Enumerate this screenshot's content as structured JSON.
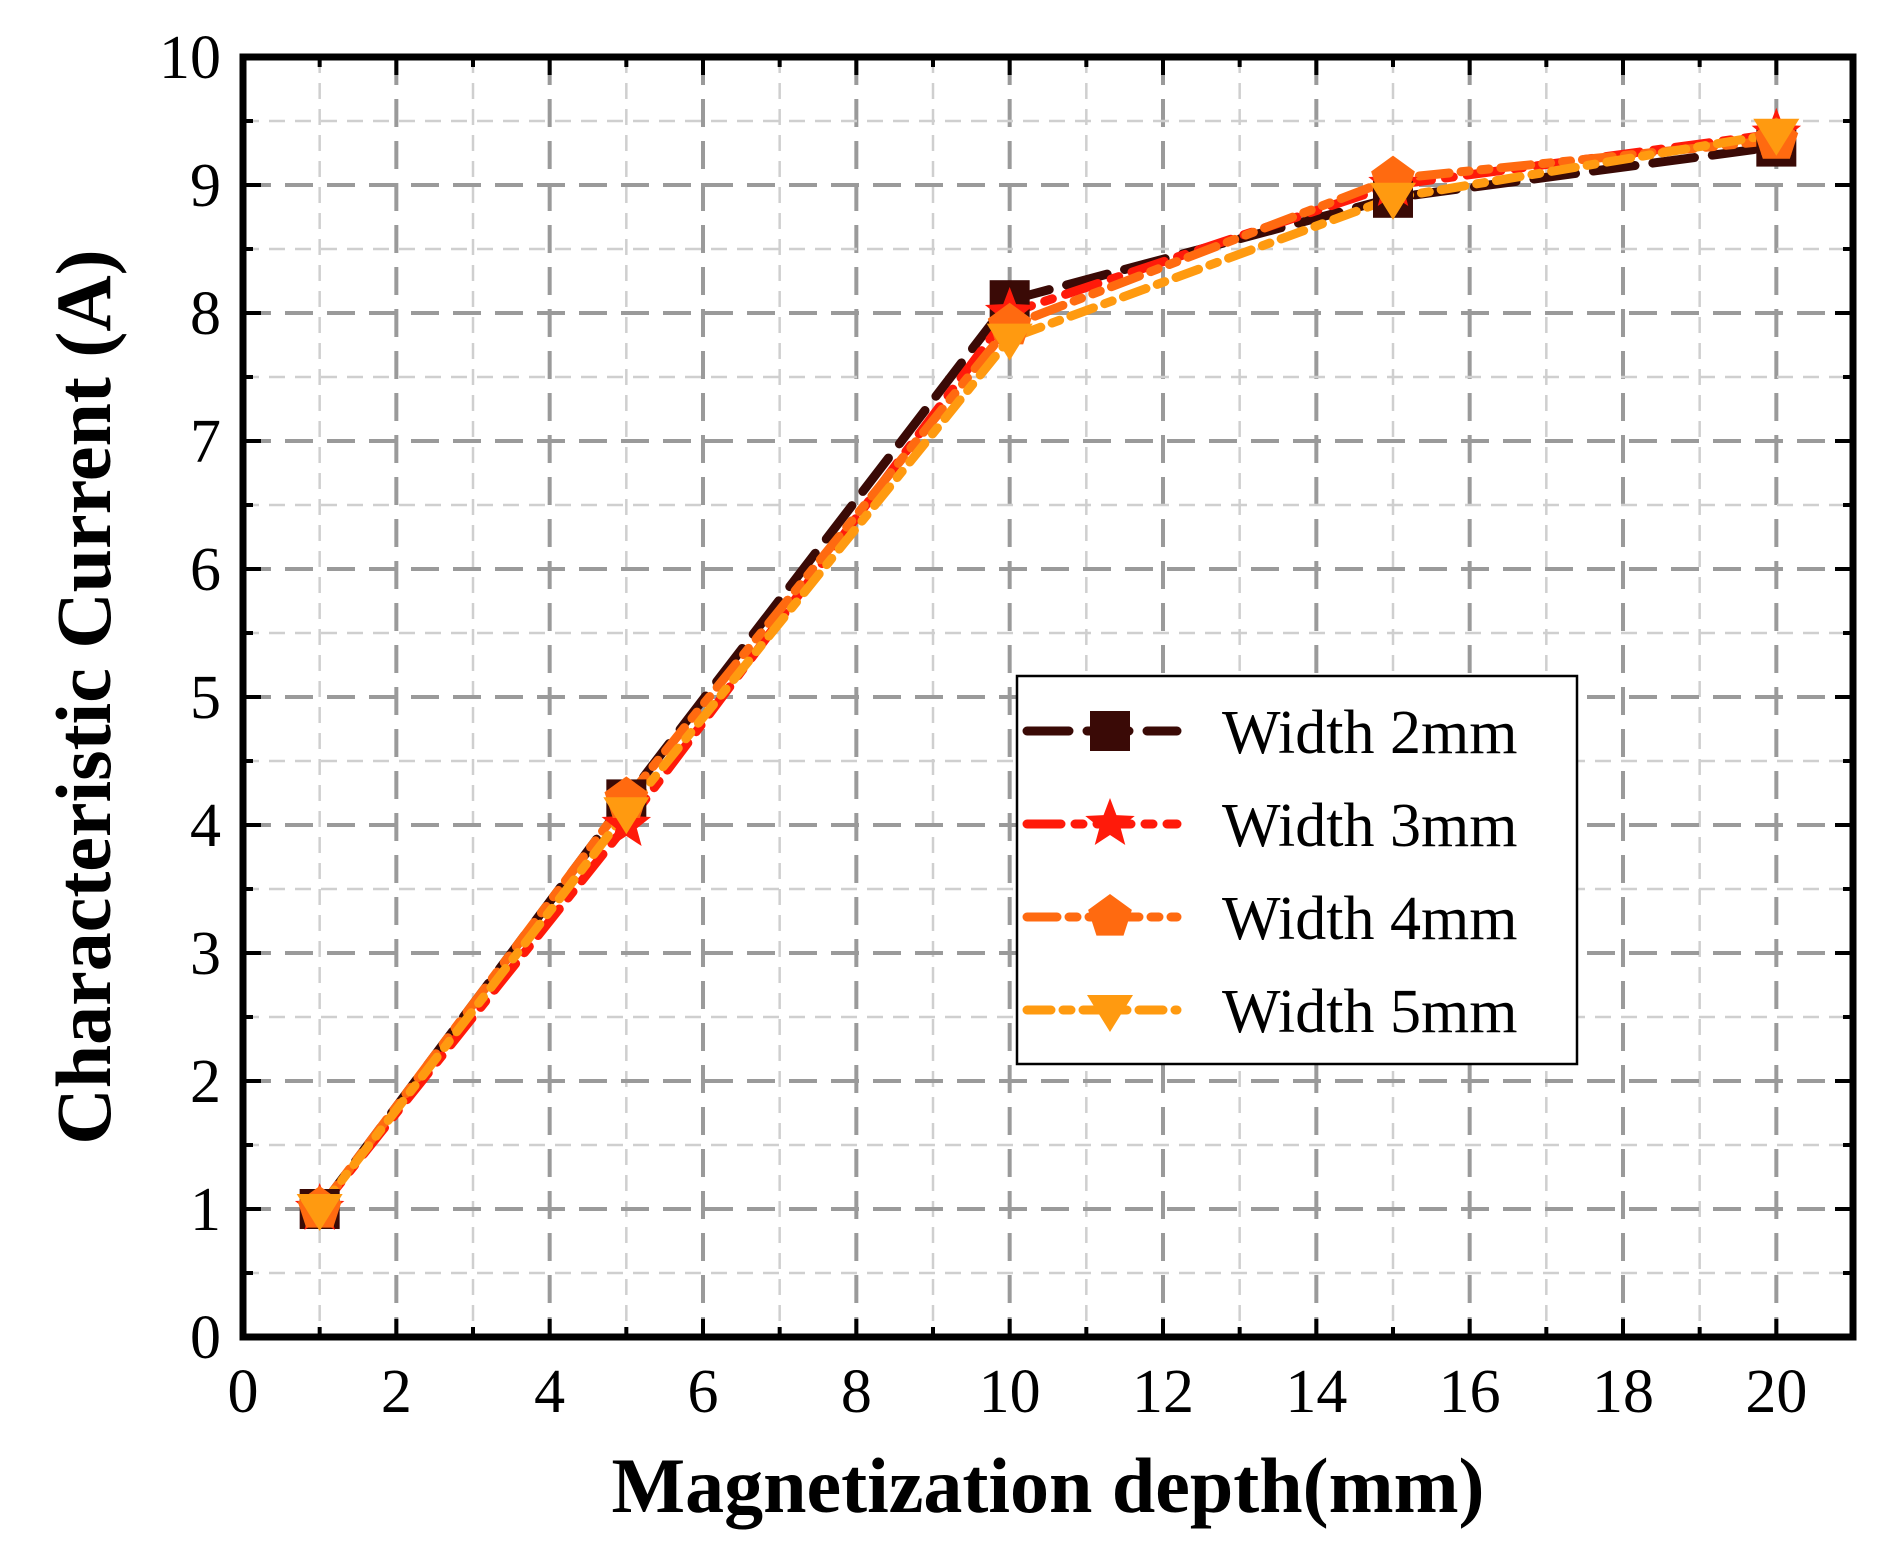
{
  "chart_data": {
    "type": "line",
    "title": "",
    "xlabel": "Magnetization depth(mm)",
    "ylabel": "Characteristic Current (A)",
    "xlim": [
      0,
      21
    ],
    "ylim": [
      0,
      10
    ],
    "xticks": [
      0,
      2,
      4,
      6,
      8,
      10,
      12,
      14,
      16,
      18,
      20
    ],
    "yticks": [
      0,
      1,
      2,
      3,
      4,
      5,
      6,
      7,
      8,
      9,
      10
    ],
    "x": [
      1,
      5,
      10,
      15,
      20
    ],
    "grid": true,
    "legend_position": "center-right",
    "series": [
      {
        "name": "Width 2mm",
        "values": [
          1.0,
          4.2,
          8.1,
          8.9,
          9.3
        ],
        "color": "#3a0a06",
        "marker": "square",
        "dash": "dash"
      },
      {
        "name": "Width 3mm",
        "values": [
          1.0,
          4.0,
          8.0,
          9.0,
          9.4
        ],
        "color": "#ff1a0a",
        "marker": "star",
        "dash": "dash-dot"
      },
      {
        "name": "Width 4mm",
        "values": [
          1.0,
          4.2,
          7.9,
          9.05,
          9.35
        ],
        "color": "#ff6a10",
        "marker": "pentagon",
        "dash": "dash-dot-dot"
      },
      {
        "name": "Width 5mm",
        "values": [
          1.0,
          4.1,
          7.8,
          8.9,
          9.4
        ],
        "color": "#ff9a10",
        "marker": "triangle-down",
        "dash": "dash-dot-short"
      }
    ]
  }
}
